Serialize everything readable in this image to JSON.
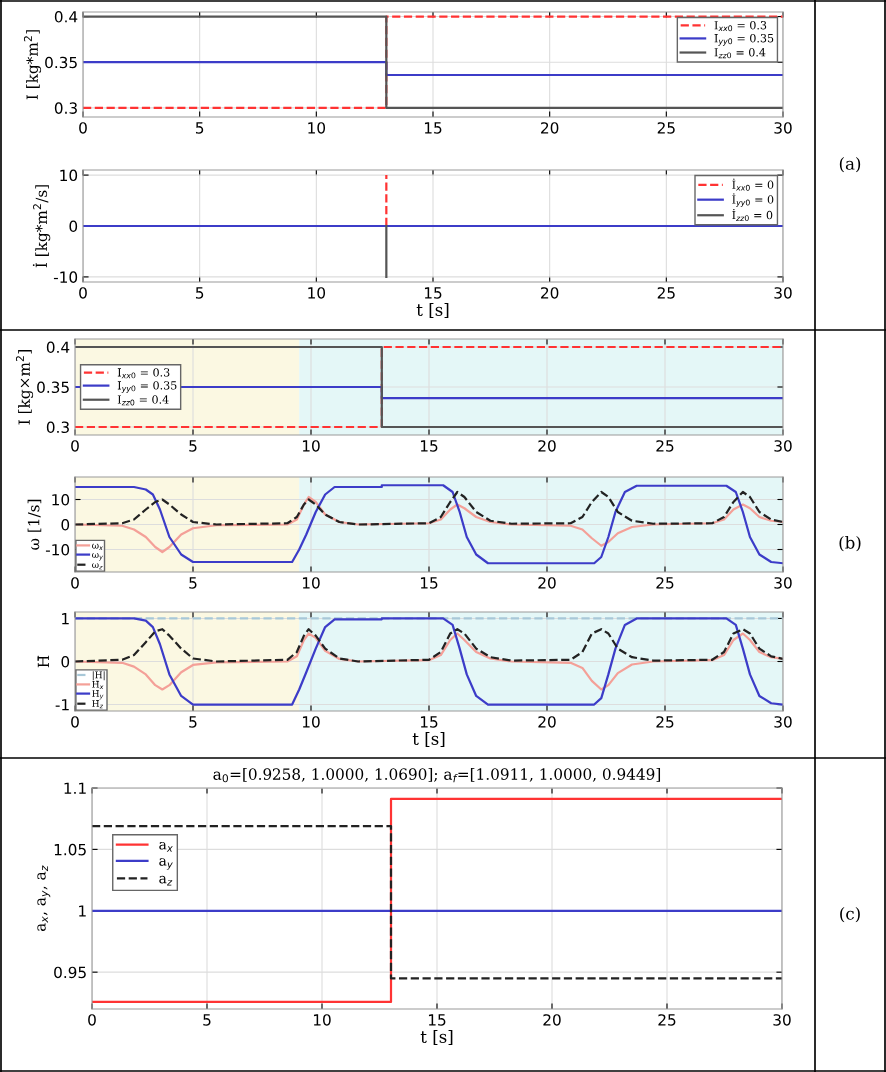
{
  "chart_data": [
    {
      "type": "line",
      "ylabel": "I [kg*m$^{2}$]",
      "xlim": [
        0,
        30
      ],
      "xticks": [
        0,
        5,
        10,
        15,
        20,
        25,
        30
      ],
      "ylim": [
        0.29,
        0.405
      ],
      "yticks": [
        0.3,
        0.35,
        0.4
      ],
      "grid": true,
      "legend": "top right",
      "series": [
        {
          "name": "I$_{xx0}$ = 0.3",
          "color": "#ff3333",
          "line_style": "dashed",
          "x": [
            0,
            13,
            13,
            30
          ],
          "values": [
            0.3,
            0.3,
            0.4,
            0.4
          ]
        },
        {
          "name": "I$_{yy0}$ = 0.35",
          "color": "#3c3cc8",
          "line_style": "solid",
          "x": [
            0,
            13,
            13,
            30
          ],
          "values": [
            0.35,
            0.35,
            0.336,
            0.336
          ]
        },
        {
          "name": "I$_{zz0}$ = 0.4",
          "color": "#555555",
          "line_style": "solid",
          "x": [
            0,
            13,
            13,
            30
          ],
          "values": [
            0.4,
            0.4,
            0.3,
            0.3
          ]
        }
      ]
    },
    {
      "type": "line",
      "ylabel": "İ [kg*m$^{2}$/s]",
      "xlabel": "t [s]",
      "xlim": [
        0,
        30
      ],
      "xticks": [
        0,
        5,
        10,
        15,
        20,
        25,
        30
      ],
      "ylim": [
        -11,
        11
      ],
      "yticks": [
        -10,
        0,
        10
      ],
      "grid": true,
      "legend": "top right",
      "annotations": [
        "(a)"
      ],
      "series": [
        {
          "name": "İ$_{xx0}$ = 0",
          "color": "#ff3333",
          "line_style": "dashed",
          "x": [
            13,
            13
          ],
          "values": [
            0,
            10
          ]
        },
        {
          "name": "İ$_{yy0}$ = 0",
          "color": "#3c3cc8",
          "line_style": "solid",
          "x": [
            0,
            30
          ],
          "values": [
            0,
            0
          ]
        },
        {
          "name": "İ$_{zz0}$ = 0",
          "color": "#555555",
          "line_style": "solid",
          "x": [
            13,
            13
          ],
          "values": [
            0,
            -10
          ]
        }
      ]
    },
    {
      "type": "line",
      "ylabel": "I [kg×m$^{2}$]",
      "xlim": [
        0,
        30
      ],
      "xticks": [
        0,
        5,
        10,
        15,
        20,
        25,
        30
      ],
      "ylim": [
        0.29,
        0.41
      ],
      "yticks": [
        0.3,
        0.35,
        0.4
      ],
      "grid": true,
      "legend": "left",
      "bands": [
        {
          "axis": "x",
          "from": 0,
          "to": 9.5,
          "color": "#fbf8e2"
        },
        {
          "axis": "x",
          "from": 9.5,
          "to": 30,
          "color": "#e4f7f7"
        }
      ],
      "series": [
        {
          "name": "I$_{xx0}$ = 0.3",
          "color": "#ff3333",
          "line_style": "dashed",
          "x": [
            0,
            13,
            13,
            30
          ],
          "values": [
            0.3,
            0.3,
            0.4,
            0.4
          ]
        },
        {
          "name": "I$_{yy0}$ = 0.35",
          "color": "#3c3cc8",
          "line_style": "solid",
          "x": [
            0,
            13,
            13,
            30
          ],
          "values": [
            0.35,
            0.35,
            0.336,
            0.336
          ]
        },
        {
          "name": "I$_{zz0}$ = 0.4",
          "color": "#555555",
          "line_style": "solid",
          "x": [
            0,
            13,
            13,
            30
          ],
          "values": [
            0.4,
            0.4,
            0.3,
            0.3
          ]
        }
      ]
    },
    {
      "type": "line",
      "ylabel": "ω [1/s]",
      "xlim": [
        0,
        30
      ],
      "xticks": [
        0,
        5,
        10,
        15,
        20,
        25,
        30
      ],
      "ylim": [
        -19,
        19
      ],
      "yticks": [
        -10,
        0,
        10
      ],
      "grid": true,
      "legend": "bottom left",
      "bands": [
        {
          "axis": "x",
          "from": 0,
          "to": 9.5,
          "color": "#fbf8e2"
        },
        {
          "axis": "x",
          "from": 9.5,
          "to": 30,
          "color": "#e4f7f7"
        }
      ],
      "series": [
        {
          "name": "ω$_{x}$",
          "color": "#f4a098",
          "line_style": "solid",
          "x": [
            0,
            2.0,
            2.5,
            3.0,
            3.4,
            3.7,
            4.0,
            4.5,
            5.0,
            6.0,
            9.0,
            9.4,
            9.7,
            9.9,
            10.2,
            10.6,
            11.2,
            12,
            15.0,
            15.5,
            15.9,
            16.2,
            16.5,
            17.0,
            17.6,
            18.5,
            21.0,
            21.5,
            21.9,
            22.3,
            22.6,
            23.0,
            23.6,
            24.5,
            27.0,
            27.5,
            27.9,
            28.3,
            28.6,
            29.0,
            29.5,
            30
          ],
          "values": [
            0,
            -0.5,
            -2,
            -5,
            -9,
            -11,
            -9,
            -4,
            -1.5,
            -0.3,
            0,
            2,
            8,
            11,
            9,
            4,
            1,
            0,
            0.5,
            2,
            6,
            8,
            6.5,
            3,
            1,
            0,
            -0.5,
            -2,
            -5.5,
            -8.5,
            -7,
            -3.5,
            -1,
            0,
            0.5,
            2,
            6,
            8,
            6.5,
            3,
            1.5,
            1
          ]
        },
        {
          "name": "ω$_{y}$",
          "color": "#3c3cc8",
          "line_style": "solid",
          "x": [
            0,
            2.5,
            3.0,
            3.3,
            3.6,
            4.0,
            4.5,
            5.0,
            9.2,
            9.5,
            9.8,
            10.2,
            10.6,
            11.0,
            13.0,
            13.0,
            15.6,
            16.0,
            16.3,
            16.6,
            17.0,
            17.5,
            22.0,
            22.3,
            22.6,
            22.9,
            23.3,
            23.8,
            27.6,
            28.0,
            28.3,
            28.6,
            29.0,
            29.5,
            30
          ],
          "values": [
            15,
            15,
            14,
            12,
            6,
            -5,
            -12,
            -15,
            -15,
            -10,
            -4,
            5,
            12,
            15,
            15,
            15.7,
            15.7,
            13,
            5,
            -5,
            -12,
            -15.5,
            -15.5,
            -13,
            -5,
            5,
            13,
            15.5,
            15.5,
            13,
            5,
            -5,
            -12,
            -15,
            -15.5
          ]
        },
        {
          "name": "ω$_{z}$",
          "color": "#222222",
          "line_style": "dashed",
          "x": [
            0,
            2.0,
            2.5,
            3.0,
            3.4,
            3.7,
            4.0,
            4.5,
            5.0,
            6.0,
            9.0,
            9.4,
            9.7,
            9.9,
            10.2,
            10.6,
            11.2,
            12,
            15.0,
            15.5,
            15.9,
            16.2,
            16.5,
            17.0,
            17.6,
            18.5,
            21.0,
            21.5,
            21.9,
            22.3,
            22.6,
            23.0,
            23.6,
            24.5,
            27.0,
            27.5,
            27.9,
            28.3,
            28.6,
            29.0,
            29.5,
            30
          ],
          "values": [
            0,
            0.5,
            2,
            6,
            9,
            10,
            8,
            4,
            1,
            0,
            0.5,
            3,
            8,
            10,
            8,
            4,
            1,
            0,
            0.5,
            3,
            9,
            13,
            11,
            5,
            1.5,
            0.3,
            0.5,
            3,
            9,
            13,
            11,
            5,
            1.5,
            0.3,
            0.5,
            3,
            9,
            13,
            11,
            5,
            2,
            1
          ]
        }
      ]
    },
    {
      "type": "line",
      "ylabel": "H̄",
      "xlabel": "t [s]",
      "xlim": [
        0,
        30
      ],
      "xticks": [
        0,
        5,
        10,
        15,
        20,
        25,
        30
      ],
      "ylim": [
        -1.15,
        1.15
      ],
      "yticks": [
        -1,
        0,
        1
      ],
      "grid": true,
      "legend": "bottom left",
      "annotations": [
        "(b)"
      ],
      "bands": [
        {
          "axis": "x",
          "from": 0,
          "to": 9.5,
          "color": "#fbf8e2"
        },
        {
          "axis": "x",
          "from": 9.5,
          "to": 30,
          "color": "#e4f7f7"
        }
      ],
      "series": [
        {
          "name": "|H|",
          "color": "#a8c8d8",
          "line_style": "dashed",
          "x": [
            0,
            30
          ],
          "values": [
            1,
            1
          ]
        },
        {
          "name": "H̄$_{x}$",
          "color": "#f4a098",
          "line_style": "solid",
          "x": [
            0,
            2.0,
            2.5,
            3.0,
            3.4,
            3.7,
            4.0,
            4.5,
            5.0,
            6.0,
            9.0,
            9.4,
            9.7,
            9.9,
            10.2,
            10.6,
            11.2,
            12,
            15.0,
            15.5,
            15.9,
            16.2,
            16.5,
            17.0,
            17.6,
            18.5,
            21.0,
            21.5,
            21.9,
            22.3,
            22.6,
            23.0,
            23.6,
            24.5,
            27.0,
            27.5,
            27.9,
            28.3,
            28.6,
            29.0,
            29.5,
            30
          ],
          "values": [
            0,
            -0.03,
            -0.12,
            -0.3,
            -0.55,
            -0.65,
            -0.55,
            -0.25,
            -0.08,
            -0.02,
            0,
            0.12,
            0.5,
            0.65,
            0.55,
            0.25,
            0.06,
            0,
            0.03,
            0.15,
            0.5,
            0.65,
            0.5,
            0.22,
            0.07,
            0,
            -0.03,
            -0.15,
            -0.45,
            -0.65,
            -0.55,
            -0.27,
            -0.07,
            0,
            0.03,
            0.15,
            0.5,
            0.65,
            0.5,
            0.22,
            0.1,
            0.06
          ]
        },
        {
          "name": "H̄$_{y}$",
          "color": "#3c3cc8",
          "line_style": "solid",
          "x": [
            0,
            2.5,
            3.0,
            3.3,
            3.6,
            4.0,
            4.5,
            5.0,
            9.2,
            9.5,
            9.8,
            10.2,
            10.6,
            11.0,
            13.0,
            13.0,
            15.6,
            16.0,
            16.3,
            16.6,
            17.0,
            17.5,
            22.0,
            22.3,
            22.6,
            22.9,
            23.3,
            23.8,
            27.6,
            28.0,
            28.3,
            28.6,
            29.0,
            29.5,
            30
          ],
          "values": [
            1,
            1,
            0.95,
            0.8,
            0.4,
            -0.3,
            -0.8,
            -1,
            -1,
            -0.65,
            -0.25,
            0.3,
            0.8,
            0.98,
            0.98,
            1,
            1,
            0.85,
            0.3,
            -0.3,
            -0.8,
            -1,
            -1,
            -0.85,
            -0.3,
            0.3,
            0.85,
            1,
            1,
            0.85,
            0.3,
            -0.3,
            -0.8,
            -0.97,
            -1
          ]
        },
        {
          "name": "H̄$_{z}$",
          "color": "#222222",
          "line_style": "dashed",
          "x": [
            0,
            2.0,
            2.5,
            3.0,
            3.4,
            3.7,
            4.0,
            4.5,
            5.0,
            6.0,
            9.0,
            9.4,
            9.7,
            9.9,
            10.2,
            10.6,
            11.2,
            12,
            15.0,
            15.5,
            15.9,
            16.2,
            16.5,
            17.0,
            17.6,
            18.5,
            21.0,
            21.5,
            21.9,
            22.3,
            22.6,
            23.0,
            23.6,
            24.5,
            27.0,
            27.5,
            27.9,
            28.3,
            28.6,
            29.0,
            29.5,
            30
          ],
          "values": [
            0,
            0.04,
            0.15,
            0.45,
            0.7,
            0.75,
            0.6,
            0.3,
            0.07,
            0,
            0.04,
            0.22,
            0.6,
            0.75,
            0.6,
            0.3,
            0.07,
            0,
            0.04,
            0.22,
            0.65,
            0.75,
            0.65,
            0.3,
            0.1,
            0.02,
            0.04,
            0.22,
            0.65,
            0.75,
            0.65,
            0.3,
            0.1,
            0.02,
            0.04,
            0.22,
            0.65,
            0.75,
            0.65,
            0.3,
            0.12,
            0.06
          ]
        }
      ]
    },
    {
      "type": "line",
      "title": "a$_{0}$=[0.9258, 1.0000, 1.0690]; a$_{f}$=[1.0911, 1.0000, 0.9449]",
      "ylabel": "a$_{x}$, a$_{y}$, a$_{z}$",
      "xlabel": "t [s]",
      "xlim": [
        0,
        30
      ],
      "xticks": [
        0,
        5,
        10,
        15,
        20,
        25,
        30
      ],
      "ylim": [
        0.92,
        1.1
      ],
      "yticks": [
        0.95,
        1,
        1.05,
        1.1
      ],
      "grid": true,
      "legend": "left",
      "annotations": [
        "(c)"
      ],
      "series": [
        {
          "name": "a$_{x}$",
          "color": "#ff3333",
          "line_style": "solid",
          "x": [
            0,
            13,
            13,
            30
          ],
          "values": [
            0.9258,
            0.9258,
            1.0911,
            1.0911
          ]
        },
        {
          "name": "a$_{y}$",
          "color": "#3c3cc8",
          "line_style": "solid",
          "x": [
            0,
            30
          ],
          "values": [
            1.0,
            1.0
          ]
        },
        {
          "name": "a$_{z}$",
          "color": "#222222",
          "line_style": "dashed",
          "x": [
            0,
            13,
            13,
            30
          ],
          "values": [
            1.069,
            1.069,
            0.9449,
            0.9449
          ]
        }
      ]
    }
  ]
}
